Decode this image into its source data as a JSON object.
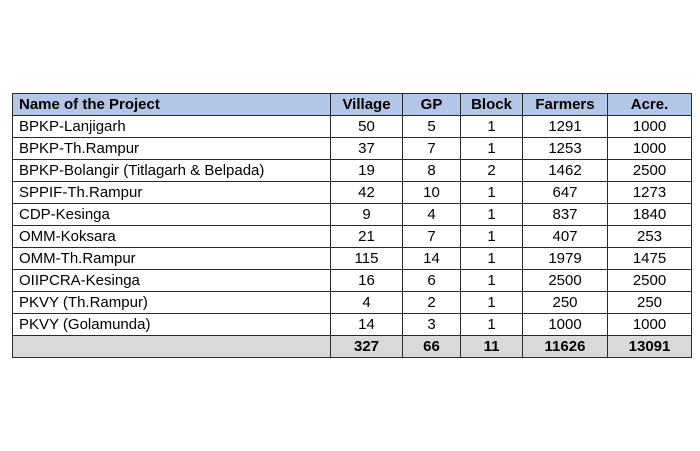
{
  "table": {
    "headers": [
      "Name of the Project",
      "Village",
      "GP",
      "Block",
      "Farmers",
      "Acre."
    ],
    "rows": [
      [
        "BPKP-Lanjigarh",
        "50",
        "5",
        "1",
        "1291",
        "1000"
      ],
      [
        "BPKP-Th.Rampur",
        "37",
        "7",
        "1",
        "1253",
        "1000"
      ],
      [
        "BPKP-Bolangir (Titlagarh & Belpada)",
        "19",
        "8",
        "2",
        "1462",
        "2500"
      ],
      [
        "SPPIF-Th.Rampur",
        "42",
        "10",
        "1",
        "647",
        "1273"
      ],
      [
        "CDP-Kesinga",
        "9",
        "4",
        "1",
        "837",
        "1840"
      ],
      [
        "OMM-Koksara",
        "21",
        "7",
        "1",
        "407",
        "253"
      ],
      [
        "OMM-Th.Rampur",
        "115",
        "14",
        "1",
        "1979",
        "1475"
      ],
      [
        "OIIPCRA-Kesinga",
        "16",
        "6",
        "1",
        "2500",
        "2500"
      ],
      [
        "PKVY (Th.Rampur)",
        "4",
        "2",
        "1",
        "250",
        "250"
      ],
      [
        "PKVY (Golamunda)",
        "14",
        "3",
        "1",
        "1000",
        "1000"
      ]
    ],
    "totals": [
      "",
      "327",
      "66",
      "11",
      "11626",
      "13091"
    ]
  },
  "colors": {
    "header_bg": "#b4c6e7",
    "total_bg": "#d9d9d9",
    "border": "#2b2b2b"
  }
}
